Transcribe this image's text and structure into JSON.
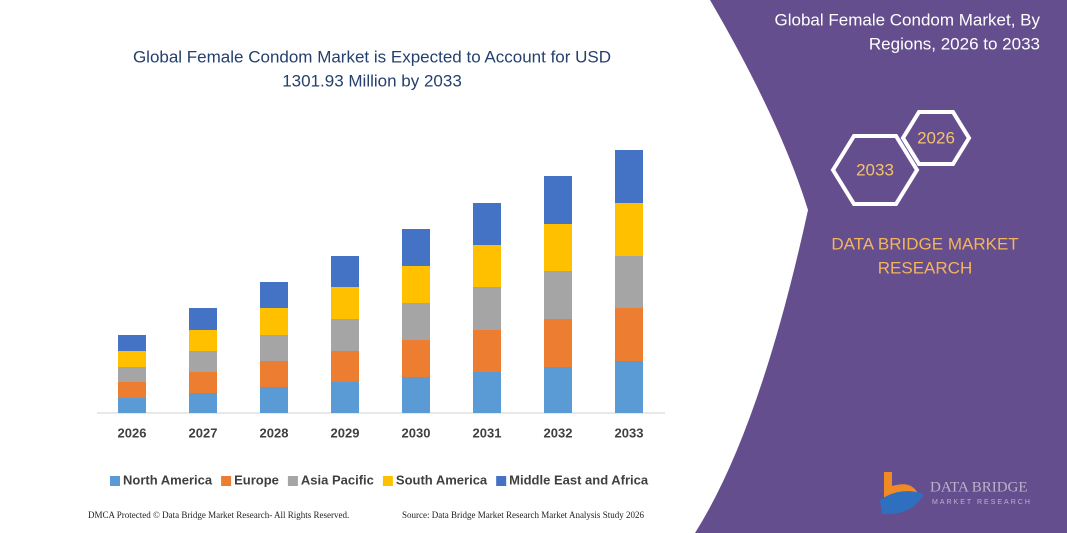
{
  "chart_data": {
    "type": "stacked-bar",
    "title": [
      "Global Female Condom Market is Expected to Account for USD",
      "1301.93 Million by 2033"
    ],
    "categories": [
      "2026",
      "2027",
      "2028",
      "2029",
      "2030",
      "2031",
      "2032",
      "2033"
    ],
    "series": [
      {
        "name": "North America",
        "color": "#5b9bd5",
        "values": [
          15,
          20,
          26,
          31,
          36,
          41,
          46,
          52
        ]
      },
      {
        "name": "Europe",
        "color": "#ed7d31",
        "values": [
          16,
          21,
          26,
          31,
          37,
          42,
          48,
          53
        ]
      },
      {
        "name": "Asia Pacific",
        "color": "#a5a5a5",
        "values": [
          15,
          21,
          26,
          32,
          37,
          43,
          48,
          52
        ]
      },
      {
        "name": "South America",
        "color": "#ffc000",
        "values": [
          16,
          21,
          27,
          32,
          37,
          42,
          47,
          53
        ]
      },
      {
        "name": "Middle East and Africa",
        "color": "#4472c4",
        "values": [
          16,
          22,
          26,
          31,
          37,
          42,
          48,
          53
        ]
      }
    ],
    "ylim": [
      0,
      263
    ],
    "legend": "bottom"
  },
  "panel": {
    "title": [
      "Global Female Condom Market, By",
      "Regions, 2026 to 2033"
    ],
    "hex_small": "2026",
    "hex_large": "2033",
    "brand": [
      "DATA BRIDGE MARKET",
      "RESEARCH"
    ],
    "logo": [
      "DATA BRIDGE",
      "MARKET RESEARCH"
    ]
  },
  "footer": {
    "left": "DMCA Protected © Data Bridge Market Research- All Rights Reserved.",
    "right": "Source: Data Bridge Market Research Market Analysis Study 2026"
  }
}
